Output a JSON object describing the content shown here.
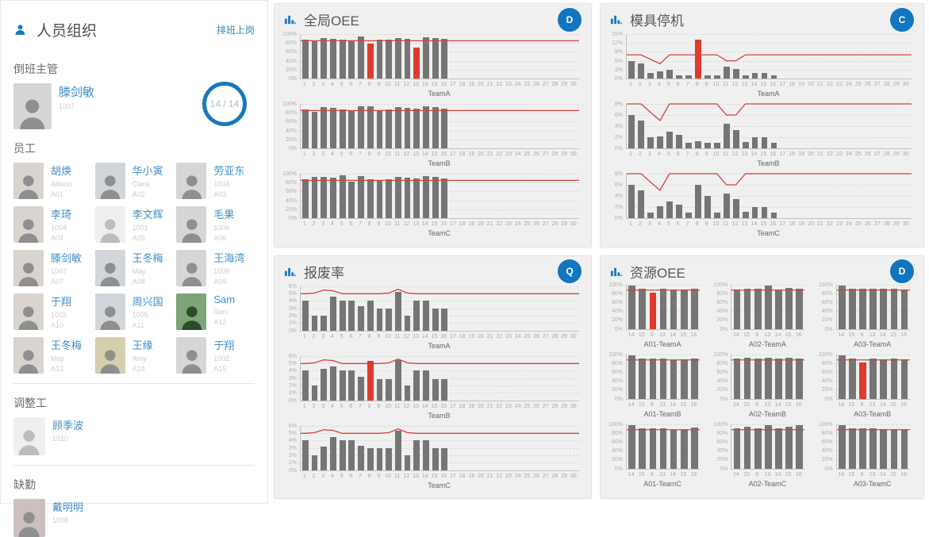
{
  "colors": {
    "accent_blue": "#1779bd",
    "link_blue": "#2f86c4",
    "bar_gray": "#757575",
    "bar_red": "#e0392e",
    "target_line": "#d0453a"
  },
  "personnel": {
    "title": "人员组织",
    "action_link": "排班上岗",
    "sections": {
      "supervisor_label": "倒班主管",
      "employees_label": "员工",
      "adjuster_label": "调整工",
      "absent_label": "缺勤"
    },
    "supervisor": {
      "name": "滕剑敏",
      "id": "1007",
      "badge": "14 / 14"
    },
    "employees": [
      {
        "name": "胡焕",
        "sub": "Allison",
        "code": "A01"
      },
      {
        "name": "华小寅",
        "sub": "Clara",
        "code": "A02"
      },
      {
        "name": "劳亚东",
        "sub": "1003",
        "code": "A03"
      },
      {
        "name": "李琦",
        "sub": "1004",
        "code": "A04"
      },
      {
        "name": "李文辉",
        "sub": "1001",
        "code": "A05",
        "placeholder": true
      },
      {
        "name": "毛果",
        "sub": "1006",
        "code": "A06"
      },
      {
        "name": "滕剑敏",
        "sub": "1007",
        "code": "A07"
      },
      {
        "name": "王冬梅",
        "sub": "May",
        "code": "A08"
      },
      {
        "name": "王海湾",
        "sub": "1009",
        "code": "A09"
      },
      {
        "name": "于翔",
        "sub": "1002",
        "code": "A10"
      },
      {
        "name": "周兴国",
        "sub": "1005",
        "code": "A11"
      },
      {
        "name": "Sam",
        "sub": "Sam",
        "code": "A12"
      },
      {
        "name": "王冬梅",
        "sub": "May",
        "code": "A13"
      },
      {
        "name": "王缘",
        "sub": "Amy",
        "code": "A14"
      },
      {
        "name": "于翔",
        "sub": "1002",
        "code": "A15"
      }
    ],
    "adjuster": {
      "name": "顾季波",
      "id": "1010",
      "placeholder": true
    },
    "absent": {
      "name": "戴明明",
      "id": "1008"
    }
  },
  "chart_data": [
    {
      "title": "全局OEE",
      "badge": "D",
      "type": "bar",
      "layout": "stack",
      "categories": [
        "1",
        "2",
        "3",
        "4",
        "5",
        "6",
        "7",
        "8",
        "9",
        "10",
        "11",
        "12",
        "13",
        "14",
        "15",
        "16",
        "17",
        "18",
        "19",
        "20",
        "21",
        "22",
        "23",
        "24",
        "25",
        "26",
        "27",
        "28",
        "29",
        "30"
      ],
      "charts": [
        {
          "xlabel": "TeamA",
          "ymax": 100,
          "yticks": [
            "0%",
            "20%",
            "40%",
            "60%",
            "80%",
            "100%"
          ],
          "values": [
            87,
            85,
            91,
            90,
            87,
            84,
            94,
            78,
            87,
            88,
            91,
            90,
            70,
            93,
            91,
            90
          ],
          "red_positions": [
            8,
            13
          ],
          "target_line": 85
        },
        {
          "xlabel": "TeamB",
          "ymax": 100,
          "yticks": [
            "0%",
            "20%",
            "40%",
            "60%",
            "80%",
            "100%"
          ],
          "values": [
            87,
            82,
            92,
            91,
            87,
            84,
            95,
            95,
            86,
            87,
            92,
            91,
            90,
            95,
            93,
            90
          ],
          "red_positions": [],
          "target_line": 85
        },
        {
          "xlabel": "TeamC",
          "ymax": 100,
          "yticks": [
            "0%",
            "20%",
            "40%",
            "60%",
            "80%",
            "100%"
          ],
          "values": [
            87,
            92,
            92,
            91,
            97,
            83,
            95,
            88,
            85,
            88,
            92,
            91,
            90,
            94,
            92,
            90
          ],
          "red_positions": [],
          "target_line": 85
        }
      ]
    },
    {
      "title": "模具停机",
      "badge": "C",
      "type": "bar",
      "layout": "stack",
      "categories": [
        "1",
        "2",
        "3",
        "4",
        "5",
        "6",
        "7",
        "8",
        "9",
        "10",
        "11",
        "12",
        "13",
        "14",
        "15",
        "16",
        "17",
        "18",
        "19",
        "20",
        "21",
        "22",
        "23",
        "24",
        "25",
        "26",
        "27",
        "28",
        "29",
        "30"
      ],
      "charts": [
        {
          "xlabel": "TeamA",
          "ymax": 15,
          "yticks": [
            "0%",
            "3%",
            "6%",
            "9%",
            "12%",
            "15%"
          ],
          "values": [
            6,
            5,
            2,
            2.5,
            3,
            1,
            1,
            13,
            1,
            1,
            4,
            3.3,
            1.2,
            2,
            2,
            1
          ],
          "red_positions": [
            8
          ],
          "target_line": [
            8,
            8,
            6.5,
            5,
            8,
            8,
            8,
            8,
            8,
            8,
            6,
            6,
            8,
            8,
            8,
            8,
            8,
            8,
            8,
            8,
            8,
            8,
            8,
            8,
            8,
            8,
            8,
            8,
            8,
            8
          ]
        },
        {
          "xlabel": "TeamB",
          "ymax": 8,
          "yticks": [
            "0%",
            "2%",
            "4%",
            "6%",
            "8%"
          ],
          "values": [
            6,
            5,
            2,
            2.2,
            3,
            2.5,
            1,
            1.3,
            1,
            1,
            4.5,
            3.3,
            1.2,
            2,
            2,
            1
          ],
          "red_positions": [],
          "target_line": [
            8,
            8,
            6.5,
            5,
            8,
            8,
            8,
            8,
            8,
            8,
            6,
            6,
            8,
            8,
            8,
            8,
            8,
            8,
            8,
            8,
            8,
            8,
            8,
            8,
            8,
            8,
            8,
            8,
            8,
            8
          ]
        },
        {
          "xlabel": "TeamC",
          "ymax": 8,
          "yticks": [
            "0%",
            "2%",
            "4%",
            "6%",
            "8%"
          ],
          "values": [
            6,
            5,
            1,
            2.2,
            3,
            2.4,
            1,
            6,
            4,
            1,
            4.5,
            3.4,
            1.2,
            2,
            2,
            1
          ],
          "red_positions": [],
          "target_line": [
            8,
            8,
            6.5,
            5,
            8,
            8,
            8,
            8,
            8,
            8,
            6,
            6,
            8,
            8,
            8,
            8,
            8,
            8,
            8,
            8,
            8,
            8,
            8,
            8,
            8,
            8,
            8,
            8,
            8,
            8
          ]
        }
      ]
    },
    {
      "title": "报废率",
      "badge": "Q",
      "type": "bar",
      "layout": "stack",
      "categories": [
        "1",
        "2",
        "3",
        "4",
        "5",
        "6",
        "7",
        "8",
        "9",
        "10",
        "11",
        "12",
        "13",
        "14",
        "15",
        "16",
        "17",
        "18",
        "19",
        "20",
        "21",
        "22",
        "23",
        "24",
        "25",
        "26",
        "27",
        "28",
        "29",
        "30"
      ],
      "charts": [
        {
          "xlabel": "TeamA",
          "ymax": 6,
          "yticks": [
            "0%",
            "1%",
            "2%",
            "3%",
            "4%",
            "5%",
            "6%"
          ],
          "values": [
            4,
            2,
            2,
            4.6,
            4,
            4,
            3.3,
            4,
            3,
            3,
            5.2,
            2,
            4,
            4,
            3,
            3
          ],
          "red_positions": [],
          "target_line": [
            5,
            5.1,
            5.5,
            5.4,
            5,
            5,
            5,
            5,
            5,
            5.1,
            5.6,
            5.1,
            5,
            5,
            5,
            5,
            5,
            5,
            5,
            5,
            5,
            5,
            5,
            5,
            5,
            5,
            5,
            5,
            5,
            5
          ]
        },
        {
          "xlabel": "TeamB",
          "ymax": 6,
          "yticks": [
            "0%",
            "1%",
            "2%",
            "3%",
            "4%",
            "5%",
            "6%"
          ],
          "values": [
            4,
            2,
            4.2,
            4.6,
            4,
            4,
            3.2,
            5.3,
            2.8,
            2.8,
            5.4,
            2,
            4,
            4,
            2.8,
            2.8
          ],
          "red_positions": [
            8
          ],
          "target_line": [
            5,
            5.1,
            5.5,
            5.4,
            5,
            5,
            5,
            5,
            5,
            5.1,
            5.6,
            5.1,
            5,
            5,
            5,
            5,
            5,
            5,
            5,
            5,
            5,
            5,
            5,
            5,
            5,
            5,
            5,
            5,
            5,
            5
          ]
        },
        {
          "xlabel": "TeamC",
          "ymax": 6,
          "yticks": [
            "0%",
            "1%",
            "2%",
            "3%",
            "4%",
            "5%",
            "6%"
          ],
          "values": [
            4,
            2,
            3.2,
            4.5,
            4,
            4,
            3.3,
            3,
            3,
            3,
            5.3,
            2,
            4,
            4,
            3,
            3
          ],
          "red_positions": [],
          "target_line": [
            5,
            5.1,
            5.5,
            5.4,
            5,
            5,
            5,
            5,
            5,
            5.1,
            5.6,
            5.1,
            5,
            5,
            5,
            5,
            5,
            5,
            5,
            5,
            5,
            5,
            5,
            5,
            5,
            5,
            5,
            5,
            5,
            5
          ]
        }
      ]
    },
    {
      "title": "资源OEE",
      "badge": "D",
      "type": "bar",
      "layout": "grid3",
      "categories": [
        "14",
        "15",
        "8",
        "13",
        "14",
        "15",
        "16"
      ],
      "charts": [
        {
          "xlabel": "A01-TeamA",
          "ymax": 100,
          "yticks": [
            "0%",
            "20%",
            "40%",
            "60%",
            "80%",
            "100%"
          ],
          "values": [
            97,
            90,
            82,
            90,
            88,
            88,
            90
          ],
          "red_positions": [
            3
          ],
          "target_line": 88
        },
        {
          "xlabel": "A02-TeamA",
          "ymax": 100,
          "yticks": [
            "0%",
            "20%",
            "40%",
            "60%",
            "80%",
            "100%"
          ],
          "values": [
            88,
            91,
            91,
            97,
            88,
            92,
            91
          ],
          "red_positions": [],
          "target_line": 88
        },
        {
          "xlabel": "A03-TeamA",
          "ymax": 100,
          "yticks": [
            "0%",
            "20%",
            "40%",
            "60%",
            "80%",
            "100%"
          ],
          "values": [
            97,
            90,
            91,
            90,
            90,
            90,
            89
          ],
          "red_positions": [],
          "target_line": 88
        },
        {
          "xlabel": "A01-TeamB",
          "ymax": 100,
          "yticks": [
            "0%",
            "20%",
            "40%",
            "60%",
            "80%",
            "100%"
          ],
          "values": [
            97,
            91,
            90,
            91,
            87,
            88,
            90
          ],
          "red_positions": [],
          "target_line": 88
        },
        {
          "xlabel": "A02-TeamB",
          "ymax": 100,
          "yticks": [
            "0%",
            "20%",
            "40%",
            "60%",
            "80%",
            "100%"
          ],
          "values": [
            90,
            92,
            91,
            92,
            90,
            92,
            90
          ],
          "red_positions": [],
          "target_line": 88
        },
        {
          "xlabel": "A03-TeamB",
          "ymax": 100,
          "yticks": [
            "0%",
            "20%",
            "40%",
            "60%",
            "80%",
            "100%"
          ],
          "values": [
            97,
            90,
            82,
            90,
            88,
            90,
            88
          ],
          "red_positions": [
            3
          ],
          "target_line": 88
        },
        {
          "xlabel": "A01-TeamC",
          "ymax": 100,
          "yticks": [
            "0%",
            "20%",
            "40%",
            "60%",
            "80%",
            "100%"
          ],
          "values": [
            97,
            90,
            90,
            90,
            87,
            88,
            92
          ],
          "red_positions": [],
          "target_line": 88
        },
        {
          "xlabel": "A02-TeamC",
          "ymax": 100,
          "yticks": [
            "0%",
            "20%",
            "40%",
            "60%",
            "80%",
            "100%"
          ],
          "values": [
            90,
            93,
            91,
            97,
            90,
            93,
            98
          ],
          "red_positions": [],
          "target_line": 88
        },
        {
          "xlabel": "A03-TeamC",
          "ymax": 100,
          "yticks": [
            "0%",
            "20%",
            "40%",
            "60%",
            "80%",
            "100%"
          ],
          "values": [
            97,
            90,
            91,
            90,
            88,
            88,
            88
          ],
          "red_positions": [],
          "target_line": 88
        }
      ]
    }
  ]
}
